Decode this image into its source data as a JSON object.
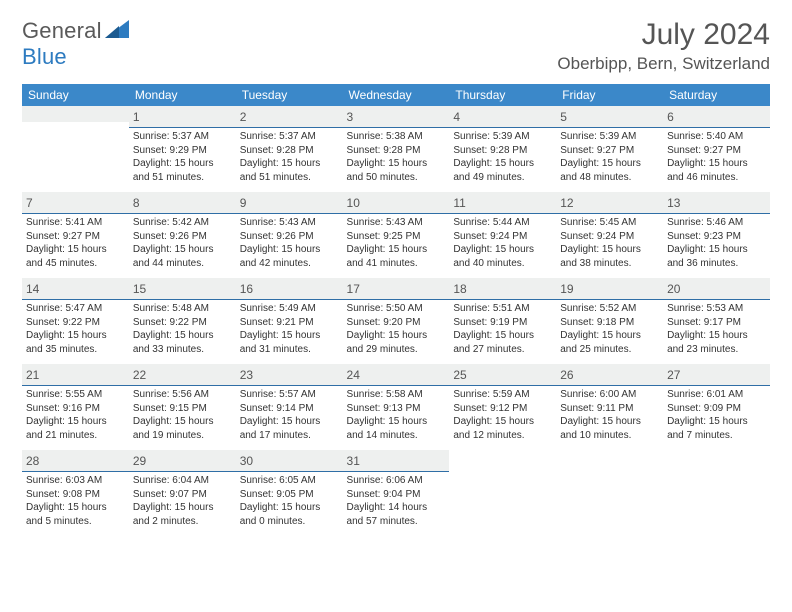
{
  "brand": {
    "name1": "General",
    "name2": "Blue"
  },
  "title": "July 2024",
  "location": "Oberbipp, Bern, Switzerland",
  "colors": {
    "header_bg": "#3b88c9",
    "header_text": "#ffffff",
    "dayrow_bg": "#eef0ef",
    "dayrow_border": "#2f6ea6",
    "body_text": "#333333",
    "title_text": "#555555",
    "brand_gray": "#5a5a5a",
    "brand_blue": "#2d7bc0"
  },
  "weekdays": [
    "Sunday",
    "Monday",
    "Tuesday",
    "Wednesday",
    "Thursday",
    "Friday",
    "Saturday"
  ],
  "startDay": 1,
  "days": [
    {
      "n": 1,
      "sr": "5:37 AM",
      "ss": "9:29 PM",
      "dl": "15 hours and 51 minutes."
    },
    {
      "n": 2,
      "sr": "5:37 AM",
      "ss": "9:28 PM",
      "dl": "15 hours and 51 minutes."
    },
    {
      "n": 3,
      "sr": "5:38 AM",
      "ss": "9:28 PM",
      "dl": "15 hours and 50 minutes."
    },
    {
      "n": 4,
      "sr": "5:39 AM",
      "ss": "9:28 PM",
      "dl": "15 hours and 49 minutes."
    },
    {
      "n": 5,
      "sr": "5:39 AM",
      "ss": "9:27 PM",
      "dl": "15 hours and 48 minutes."
    },
    {
      "n": 6,
      "sr": "5:40 AM",
      "ss": "9:27 PM",
      "dl": "15 hours and 46 minutes."
    },
    {
      "n": 7,
      "sr": "5:41 AM",
      "ss": "9:27 PM",
      "dl": "15 hours and 45 minutes."
    },
    {
      "n": 8,
      "sr": "5:42 AM",
      "ss": "9:26 PM",
      "dl": "15 hours and 44 minutes."
    },
    {
      "n": 9,
      "sr": "5:43 AM",
      "ss": "9:26 PM",
      "dl": "15 hours and 42 minutes."
    },
    {
      "n": 10,
      "sr": "5:43 AM",
      "ss": "9:25 PM",
      "dl": "15 hours and 41 minutes."
    },
    {
      "n": 11,
      "sr": "5:44 AM",
      "ss": "9:24 PM",
      "dl": "15 hours and 40 minutes."
    },
    {
      "n": 12,
      "sr": "5:45 AM",
      "ss": "9:24 PM",
      "dl": "15 hours and 38 minutes."
    },
    {
      "n": 13,
      "sr": "5:46 AM",
      "ss": "9:23 PM",
      "dl": "15 hours and 36 minutes."
    },
    {
      "n": 14,
      "sr": "5:47 AM",
      "ss": "9:22 PM",
      "dl": "15 hours and 35 minutes."
    },
    {
      "n": 15,
      "sr": "5:48 AM",
      "ss": "9:22 PM",
      "dl": "15 hours and 33 minutes."
    },
    {
      "n": 16,
      "sr": "5:49 AM",
      "ss": "9:21 PM",
      "dl": "15 hours and 31 minutes."
    },
    {
      "n": 17,
      "sr": "5:50 AM",
      "ss": "9:20 PM",
      "dl": "15 hours and 29 minutes."
    },
    {
      "n": 18,
      "sr": "5:51 AM",
      "ss": "9:19 PM",
      "dl": "15 hours and 27 minutes."
    },
    {
      "n": 19,
      "sr": "5:52 AM",
      "ss": "9:18 PM",
      "dl": "15 hours and 25 minutes."
    },
    {
      "n": 20,
      "sr": "5:53 AM",
      "ss": "9:17 PM",
      "dl": "15 hours and 23 minutes."
    },
    {
      "n": 21,
      "sr": "5:55 AM",
      "ss": "9:16 PM",
      "dl": "15 hours and 21 minutes."
    },
    {
      "n": 22,
      "sr": "5:56 AM",
      "ss": "9:15 PM",
      "dl": "15 hours and 19 minutes."
    },
    {
      "n": 23,
      "sr": "5:57 AM",
      "ss": "9:14 PM",
      "dl": "15 hours and 17 minutes."
    },
    {
      "n": 24,
      "sr": "5:58 AM",
      "ss": "9:13 PM",
      "dl": "15 hours and 14 minutes."
    },
    {
      "n": 25,
      "sr": "5:59 AM",
      "ss": "9:12 PM",
      "dl": "15 hours and 12 minutes."
    },
    {
      "n": 26,
      "sr": "6:00 AM",
      "ss": "9:11 PM",
      "dl": "15 hours and 10 minutes."
    },
    {
      "n": 27,
      "sr": "6:01 AM",
      "ss": "9:09 PM",
      "dl": "15 hours and 7 minutes."
    },
    {
      "n": 28,
      "sr": "6:03 AM",
      "ss": "9:08 PM",
      "dl": "15 hours and 5 minutes."
    },
    {
      "n": 29,
      "sr": "6:04 AM",
      "ss": "9:07 PM",
      "dl": "15 hours and 2 minutes."
    },
    {
      "n": 30,
      "sr": "6:05 AM",
      "ss": "9:05 PM",
      "dl": "15 hours and 0 minutes."
    },
    {
      "n": 31,
      "sr": "6:06 AM",
      "ss": "9:04 PM",
      "dl": "14 hours and 57 minutes."
    }
  ],
  "labels": {
    "sunrise": "Sunrise:",
    "sunset": "Sunset:",
    "daylight": "Daylight:"
  }
}
